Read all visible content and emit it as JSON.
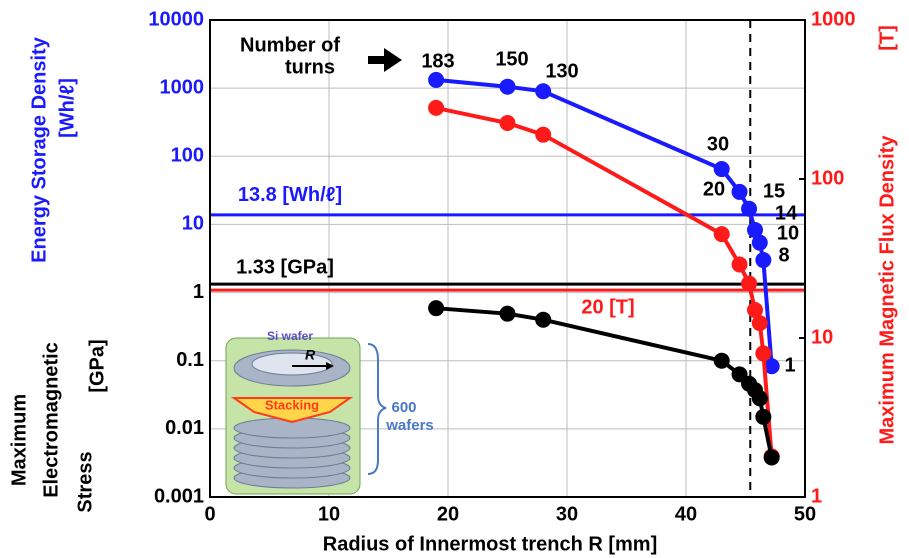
{
  "chart_data": {
    "type": "line",
    "xlabel": "Radius of Innermost trench R  [mm]",
    "ylabel_top": [
      "Energy Storage Density",
      "[Wh/ℓ]"
    ],
    "ylabel_bottom": [
      "Maximum",
      "Electromagnetic",
      "Stress",
      "[GPa]"
    ],
    "y2label": [
      "Maximum Magnetic Flux Density",
      "[T]"
    ],
    "xlim": [
      0,
      50
    ],
    "xticks": [
      0,
      10,
      20,
      30,
      40,
      50
    ],
    "ylim": [
      0.001,
      10000
    ],
    "yticks": [
      0.001,
      0.01,
      0.1,
      1,
      10,
      100,
      1000,
      10000
    ],
    "ytick_colors": [
      "#000000",
      "#000000",
      "#000000",
      "#000000",
      "#1a1aff",
      "#1a1aff",
      "#1a1aff",
      "#1a1aff"
    ],
    "y2lim": [
      1,
      1000
    ],
    "y2ticks": [
      1,
      10,
      100,
      1000
    ],
    "y2tick_color": "#ff1a1a",
    "log_y": true,
    "log_y2": true,
    "grid": true,
    "x": [
      19,
      25,
      28,
      43,
      44.5,
      45.3,
      45.8,
      46.2,
      46.5,
      47.2
    ],
    "series": [
      {
        "color": "#1a1aff",
        "axis": "y",
        "values": [
          1320,
          1050,
          900,
          65,
          30,
          17,
          8.3,
          5.4,
          3,
          0.083
        ]
      },
      {
        "color": "#ff1a1a",
        "axis": "y2",
        "values": [
          280,
          225,
          190,
          45,
          29,
          22,
          15,
          12.4,
          8,
          1.8
        ]
      },
      {
        "color": "#000000",
        "axis": "y",
        "values": [
          0.59,
          0.49,
          0.4,
          0.1,
          0.063,
          0.046,
          0.037,
          0.028,
          0.015,
          0.0038
        ]
      }
    ],
    "turns": [
      183,
      150,
      130,
      30,
      20,
      15,
      14,
      10,
      8,
      1
    ],
    "turns_note": [
      "Number of",
      "turns"
    ],
    "hlines": [
      {
        "value": 13.8,
        "axis": "y",
        "color": "#1a1aff",
        "label": "13.8 [Wh/ℓ]"
      },
      {
        "value": 1.33,
        "axis": "y",
        "color": "#000000",
        "label": "1.33 [GPa]"
      },
      {
        "value": 20,
        "axis": "y2",
        "color": "#ff1a1a",
        "label": "20 [T]"
      }
    ],
    "vline_x": 45.4,
    "inset": {
      "wafer": "Si wafer",
      "radius": "R",
      "stacking": "Stacking",
      "count": [
        "600",
        "wafers"
      ]
    }
  }
}
